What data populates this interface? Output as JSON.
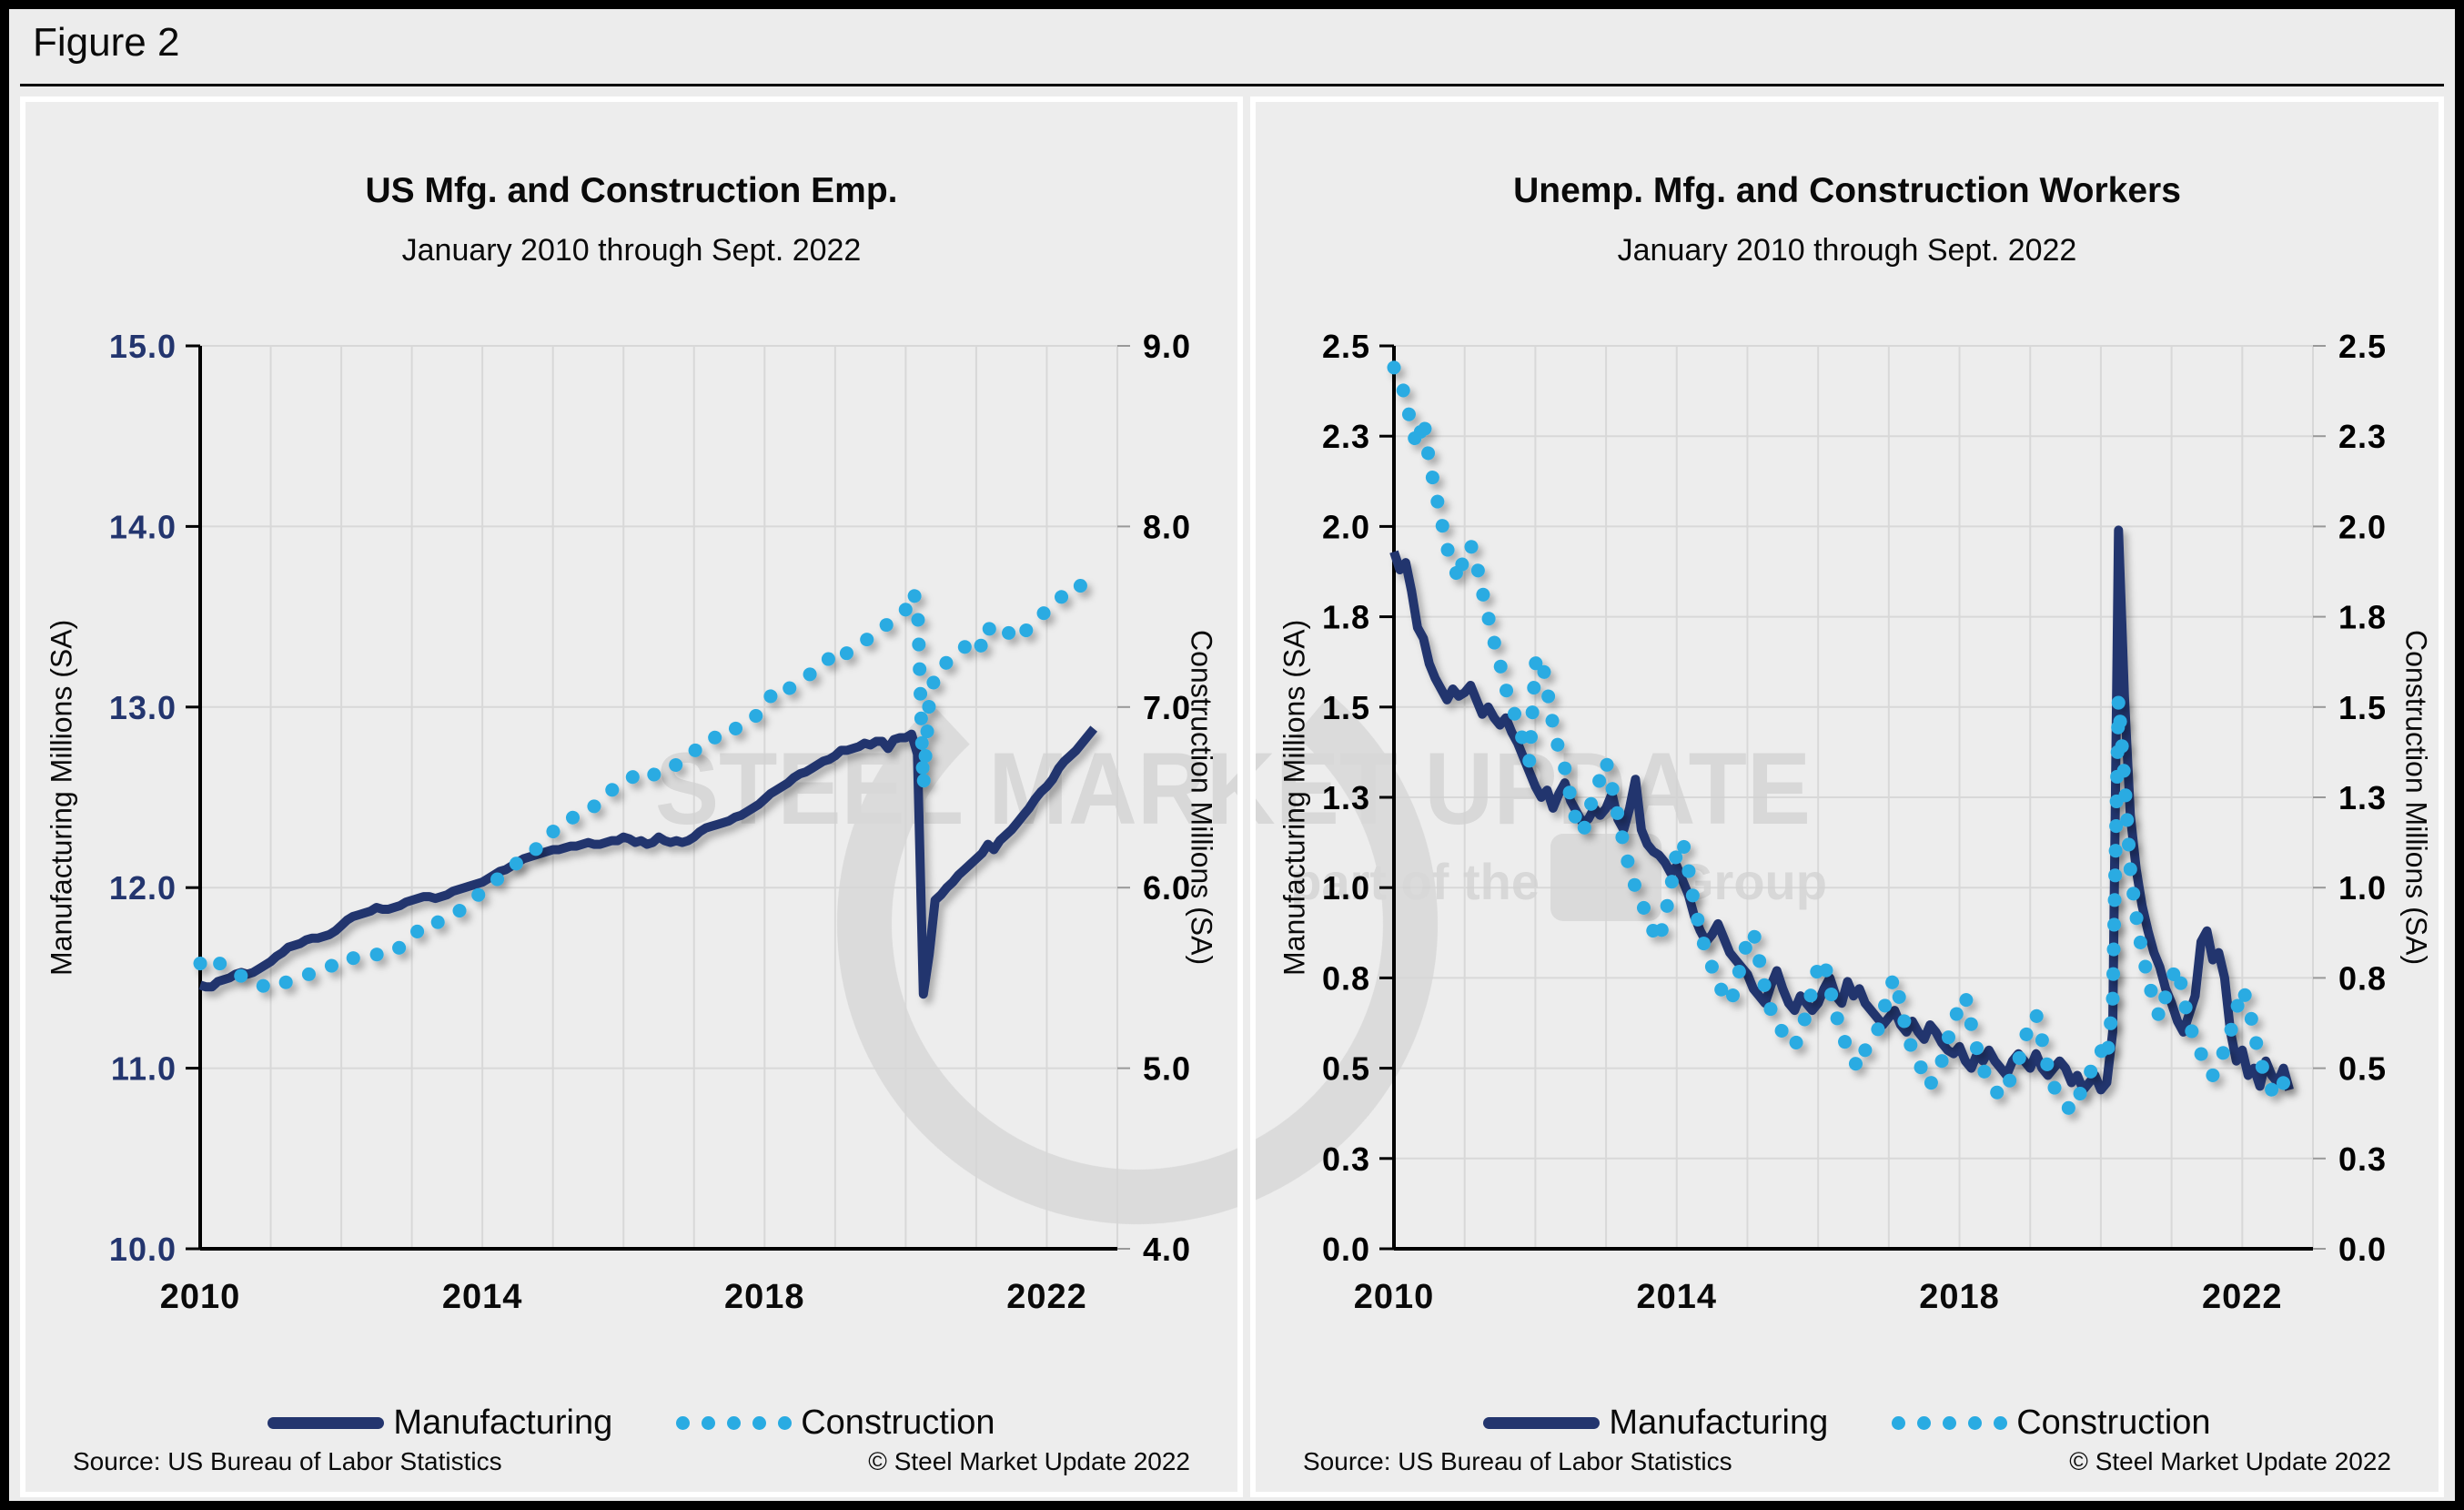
{
  "figure": {
    "label": "Figure 2"
  },
  "watermark": {
    "line1": "STEEL MARKET UPDATE",
    "line2_prefix": "part of the",
    "line2_suffix": "Group",
    "color": "#D2D2D2"
  },
  "colors": {
    "manufacturing": "#23356E",
    "construction": "#29ABE2",
    "gridline": "#D8D8D8",
    "axis": "#000000",
    "panel_background": "#EDEDED"
  },
  "chart_data": [
    {
      "type": "line",
      "title": "US Mfg. and Construction Emp.",
      "subtitle": "January 2010 through Sept. 2022",
      "grid": true,
      "legend": {
        "position": "bottom",
        "items": [
          {
            "label": "Manufacturing",
            "style": "solid",
            "color": "#23356E"
          },
          {
            "label": "Construction",
            "style": "dotted",
            "color": "#29ABE2"
          }
        ]
      },
      "source": "Source: US Bureau  of Labor Statistics",
      "copyright": "© Steel Market Update 2022",
      "x_axis": {
        "start": 2010,
        "end": 2023,
        "ticks": [
          {
            "label": "2010",
            "value": 2010
          },
          {
            "label": "2014",
            "value": 2014
          },
          {
            "label": "2018",
            "value": 2018
          },
          {
            "label": "2022",
            "value": 2022
          }
        ]
      },
      "left_axis": {
        "title": "Manufacturing Millions (SA)",
        "min": 10,
        "max": 15,
        "label_color": "#23356E",
        "ticks": [
          {
            "label": "15.0",
            "value": 15
          },
          {
            "label": "14.0",
            "value": 14
          },
          {
            "label": "13.0",
            "value": 13
          },
          {
            "label": "12.0",
            "value": 12
          },
          {
            "label": "11.0",
            "value": 11
          },
          {
            "label": "10.0",
            "value": 10
          }
        ]
      },
      "right_axis": {
        "title": "Construction Millions (SA)",
        "min": 4,
        "max": 9,
        "label_color": "#000000",
        "ticks": [
          {
            "label": "9.0",
            "value": 9
          },
          {
            "label": "8.0",
            "value": 8
          },
          {
            "label": "7.0",
            "value": 7
          },
          {
            "label": "6.0",
            "value": 6
          },
          {
            "label": "5.0",
            "value": 5
          },
          {
            "label": "4.0",
            "value": 4
          }
        ]
      },
      "series": [
        {
          "name": "Manufacturing",
          "axis": "left",
          "style": "solid",
          "color": "#23356E",
          "frequency": "monthly",
          "start": "2010-01",
          "end": "2022-09",
          "values": [
            11.46,
            11.45,
            11.45,
            11.48,
            11.49,
            11.5,
            11.52,
            11.53,
            11.52,
            11.53,
            11.55,
            11.57,
            11.59,
            11.62,
            11.64,
            11.67,
            11.68,
            11.69,
            11.71,
            11.72,
            11.72,
            11.73,
            11.74,
            11.76,
            11.79,
            11.82,
            11.84,
            11.85,
            11.86,
            11.87,
            11.89,
            11.88,
            11.88,
            11.89,
            11.9,
            11.92,
            11.93,
            11.94,
            11.95,
            11.95,
            11.94,
            11.95,
            11.96,
            11.98,
            11.99,
            12.0,
            12.01,
            12.02,
            12.03,
            12.05,
            12.07,
            12.09,
            12.1,
            12.12,
            12.14,
            12.16,
            12.17,
            12.18,
            12.19,
            12.2,
            12.21,
            12.21,
            12.22,
            12.23,
            12.23,
            12.24,
            12.25,
            12.24,
            12.24,
            12.25,
            12.26,
            12.26,
            12.28,
            12.27,
            12.25,
            12.26,
            12.24,
            12.25,
            12.28,
            12.26,
            12.25,
            12.26,
            12.25,
            12.26,
            12.28,
            12.31,
            12.33,
            12.34,
            12.35,
            12.36,
            12.37,
            12.39,
            12.4,
            12.42,
            12.44,
            12.46,
            12.49,
            12.52,
            12.54,
            12.56,
            12.58,
            12.61,
            12.63,
            12.64,
            12.66,
            12.68,
            12.7,
            12.71,
            12.73,
            12.76,
            12.76,
            12.77,
            12.78,
            12.8,
            12.79,
            12.81,
            12.81,
            12.77,
            12.82,
            12.83,
            12.83,
            12.85,
            12.74,
            11.41,
            11.63,
            11.93,
            11.96,
            12.0,
            12.03,
            12.07,
            12.1,
            12.13,
            12.16,
            12.19,
            12.24,
            12.21,
            12.26,
            12.29,
            12.32,
            12.36,
            12.4,
            12.44,
            12.49,
            12.53,
            12.56,
            12.6,
            12.66,
            12.7,
            12.73,
            12.76,
            12.8,
            12.84,
            12.88
          ]
        },
        {
          "name": "Construction",
          "axis": "right",
          "style": "dotted",
          "color": "#29ABE2",
          "frequency": "monthly",
          "start": "2010-01",
          "end": "2022-09",
          "values": [
            5.58,
            5.55,
            5.57,
            5.59,
            5.56,
            5.54,
            5.53,
            5.51,
            5.5,
            5.49,
            5.47,
            5.45,
            5.44,
            5.45,
            5.47,
            5.48,
            5.49,
            5.5,
            5.52,
            5.52,
            5.54,
            5.55,
            5.56,
            5.58,
            5.6,
            5.62,
            5.61,
            5.6,
            5.61,
            5.62,
            5.63,
            5.62,
            5.63,
            5.65,
            5.67,
            5.69,
            5.72,
            5.76,
            5.79,
            5.78,
            5.8,
            5.82,
            5.83,
            5.85,
            5.87,
            5.89,
            5.92,
            5.95,
            5.98,
            6.0,
            6.03,
            6.06,
            6.09,
            6.11,
            6.14,
            6.16,
            6.19,
            6.21,
            6.24,
            6.28,
            6.31,
            6.33,
            6.34,
            6.38,
            6.4,
            6.41,
            6.44,
            6.45,
            6.47,
            6.51,
            6.54,
            6.56,
            6.58,
            6.59,
            6.63,
            6.64,
            6.62,
            6.62,
            6.65,
            6.65,
            6.67,
            6.68,
            6.7,
            6.72,
            6.75,
            6.8,
            6.81,
            6.82,
            6.84,
            6.86,
            6.85,
            6.88,
            6.89,
            6.9,
            6.93,
            6.97,
            7.01,
            7.06,
            7.04,
            7.06,
            7.1,
            7.12,
            7.14,
            7.16,
            7.19,
            7.2,
            7.24,
            7.27,
            7.3,
            7.27,
            7.3,
            7.32,
            7.35,
            7.37,
            7.38,
            7.41,
            7.44,
            7.46,
            7.48,
            7.51,
            7.54,
            7.64,
            7.59,
            6.56,
            7.02,
            7.18,
            7.2,
            7.25,
            7.28,
            7.31,
            7.33,
            7.38,
            7.38,
            7.33,
            7.44,
            7.41,
            7.38,
            7.4,
            7.42,
            7.45,
            7.41,
            7.44,
            7.48,
            7.51,
            7.53,
            7.58,
            7.6,
            7.62,
            7.66,
            7.65,
            7.68,
            7.7,
            7.72
          ]
        }
      ]
    },
    {
      "type": "line",
      "title": "Unemp. Mfg. and Construction Workers",
      "subtitle": "January 2010 through Sept. 2022",
      "grid": true,
      "legend": {
        "position": "bottom",
        "items": [
          {
            "label": "Manufacturing",
            "style": "solid",
            "color": "#23356E"
          },
          {
            "label": "Construction",
            "style": "dotted",
            "color": "#29ABE2"
          }
        ]
      },
      "source": "Source: US Bureau  of Labor Statistics",
      "copyright": "© Steel Market Update 2022",
      "x_axis": {
        "start": 2010,
        "end": 2023,
        "ticks": [
          {
            "label": "2010",
            "value": 2010
          },
          {
            "label": "2014",
            "value": 2014
          },
          {
            "label": "2018",
            "value": 2018
          },
          {
            "label": "2022",
            "value": 2022
          }
        ]
      },
      "left_axis": {
        "title": "Manufacturing Millions (SA)",
        "min": 0,
        "max": 2.5,
        "label_color": "#000000",
        "ticks": [
          {
            "label": "2.5",
            "value": 2.5
          },
          {
            "label": "2.3",
            "value": 2.25
          },
          {
            "label": "2.0",
            "value": 2.0
          },
          {
            "label": "1.8",
            "value": 1.75
          },
          {
            "label": "1.5",
            "value": 1.5
          },
          {
            "label": "1.3",
            "value": 1.25
          },
          {
            "label": "1.0",
            "value": 1.0
          },
          {
            "label": "0.8",
            "value": 0.75
          },
          {
            "label": "0.5",
            "value": 0.5
          },
          {
            "label": "0.3",
            "value": 0.25
          },
          {
            "label": "0.0",
            "value": 0
          }
        ]
      },
      "right_axis": {
        "title": "Construction Millions (SA)",
        "min": 0,
        "max": 2.5,
        "label_color": "#000000",
        "ticks": [
          {
            "label": "2.5",
            "value": 2.5
          },
          {
            "label": "2.3",
            "value": 2.25
          },
          {
            "label": "2.0",
            "value": 2.0
          },
          {
            "label": "1.8",
            "value": 1.75
          },
          {
            "label": "1.5",
            "value": 1.5
          },
          {
            "label": "1.3",
            "value": 1.25
          },
          {
            "label": "1.0",
            "value": 1.0
          },
          {
            "label": "0.8",
            "value": 0.75
          },
          {
            "label": "0.5",
            "value": 0.5
          },
          {
            "label": "0.3",
            "value": 0.25
          },
          {
            "label": "0.0",
            "value": 0
          }
        ]
      },
      "series": [
        {
          "name": "Manufacturing",
          "axis": "left",
          "style": "solid",
          "color": "#23356E",
          "frequency": "monthly",
          "start": "2010-01",
          "end": "2022-09",
          "values": [
            1.93,
            1.88,
            1.9,
            1.82,
            1.72,
            1.69,
            1.62,
            1.58,
            1.55,
            1.52,
            1.55,
            1.53,
            1.54,
            1.56,
            1.52,
            1.48,
            1.5,
            1.47,
            1.45,
            1.47,
            1.43,
            1.4,
            1.36,
            1.32,
            1.28,
            1.25,
            1.27,
            1.22,
            1.26,
            1.29,
            1.24,
            1.21,
            1.18,
            1.19,
            1.22,
            1.2,
            1.22,
            1.26,
            1.19,
            1.16,
            1.22,
            1.3,
            1.16,
            1.12,
            1.1,
            1.09,
            1.07,
            1.04,
            1.06,
            1.02,
            0.98,
            0.92,
            0.88,
            0.85,
            0.87,
            0.9,
            0.86,
            0.82,
            0.8,
            0.78,
            0.76,
            0.72,
            0.7,
            0.68,
            0.73,
            0.77,
            0.72,
            0.68,
            0.66,
            0.7,
            0.68,
            0.66,
            0.68,
            0.72,
            0.75,
            0.7,
            0.68,
            0.74,
            0.7,
            0.72,
            0.68,
            0.66,
            0.64,
            0.62,
            0.64,
            0.66,
            0.62,
            0.6,
            0.63,
            0.6,
            0.58,
            0.62,
            0.6,
            0.57,
            0.55,
            0.54,
            0.56,
            0.52,
            0.5,
            0.54,
            0.52,
            0.55,
            0.52,
            0.5,
            0.48,
            0.52,
            0.54,
            0.52,
            0.5,
            0.54,
            0.5,
            0.48,
            0.5,
            0.52,
            0.5,
            0.46,
            0.48,
            0.44,
            0.46,
            0.48,
            0.44,
            0.46,
            0.6,
            1.99,
            1.53,
            1.2,
            1.05,
            0.95,
            0.88,
            0.82,
            0.78,
            0.72,
            0.68,
            0.63,
            0.6,
            0.65,
            0.7,
            0.85,
            0.88,
            0.8,
            0.82,
            0.75,
            0.6,
            0.52,
            0.55,
            0.48,
            0.5,
            0.45,
            0.52,
            0.48,
            0.46,
            0.5,
            0.44
          ]
        },
        {
          "name": "Construction",
          "axis": "right",
          "style": "dotted",
          "color": "#29ABE2",
          "frequency": "monthly",
          "start": "2010-01",
          "end": "2022-09",
          "values": [
            2.44,
            2.4,
            2.36,
            2.27,
            2.22,
            2.3,
            2.18,
            2.1,
            2.02,
            1.94,
            1.9,
            1.85,
            1.93,
            1.95,
            1.9,
            1.82,
            1.75,
            1.68,
            1.62,
            1.55,
            1.5,
            1.46,
            1.4,
            1.35,
            1.62,
            1.64,
            1.55,
            1.45,
            1.38,
            1.33,
            1.25,
            1.18,
            1.15,
            1.2,
            1.27,
            1.3,
            1.35,
            1.28,
            1.2,
            1.12,
            1.05,
            1.0,
            0.96,
            0.92,
            0.88,
            0.85,
            0.92,
            1.0,
            1.1,
            1.13,
            1.05,
            0.95,
            0.88,
            0.82,
            0.78,
            0.74,
            0.7,
            0.68,
            0.72,
            0.8,
            0.85,
            0.88,
            0.8,
            0.72,
            0.66,
            0.62,
            0.6,
            0.58,
            0.56,
            0.6,
            0.65,
            0.72,
            0.78,
            0.8,
            0.72,
            0.65,
            0.6,
            0.55,
            0.52,
            0.5,
            0.55,
            0.58,
            0.6,
            0.65,
            0.72,
            0.75,
            0.68,
            0.6,
            0.55,
            0.52,
            0.48,
            0.45,
            0.5,
            0.52,
            0.58,
            0.62,
            0.68,
            0.7,
            0.62,
            0.55,
            0.5,
            0.46,
            0.44,
            0.42,
            0.45,
            0.48,
            0.52,
            0.58,
            0.62,
            0.65,
            0.58,
            0.5,
            0.45,
            0.42,
            0.4,
            0.38,
            0.42,
            0.44,
            0.48,
            0.52,
            0.55,
            0.52,
            0.68,
            1.52,
            1.3,
            1.05,
            0.92,
            0.82,
            0.75,
            0.68,
            0.64,
            0.7,
            0.75,
            0.78,
            0.7,
            0.62,
            0.58,
            0.54,
            0.5,
            0.48,
            0.52,
            0.55,
            0.6,
            0.66,
            0.72,
            0.68,
            0.6,
            0.52,
            0.48,
            0.44,
            0.42,
            0.46,
            0.4
          ]
        }
      ]
    }
  ]
}
